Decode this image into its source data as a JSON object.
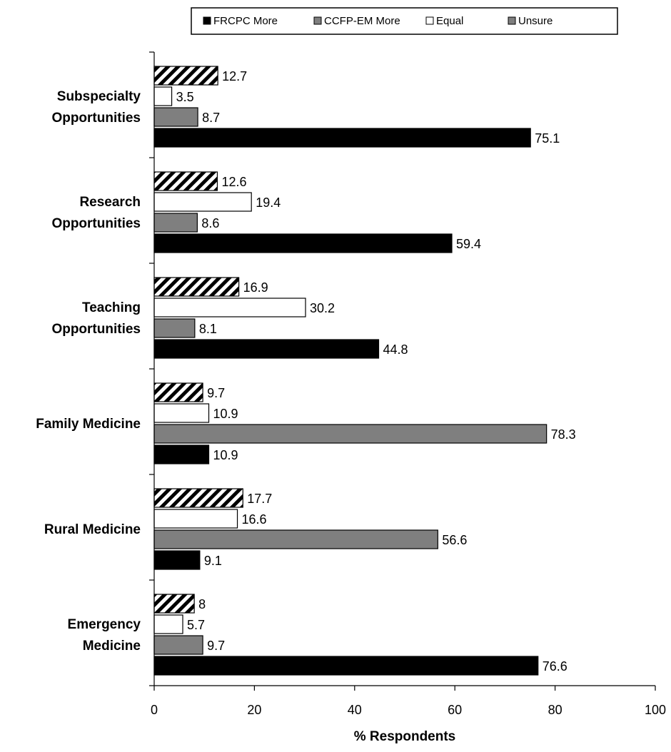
{
  "chart_data": {
    "type": "bar",
    "orientation": "horizontal",
    "categories": [
      [
        "Subspecialty",
        "Opportunities"
      ],
      [
        "Research",
        "Opportunities"
      ],
      [
        "Teaching",
        "Opportunities"
      ],
      [
        "Family Medicine"
      ],
      [
        "Rural Medicine"
      ],
      [
        "Emergency",
        "Medicine"
      ]
    ],
    "series": [
      {
        "name": "FRCPC More",
        "color": "#000000",
        "pattern": "solid",
        "values": [
          75.1,
          59.4,
          44.8,
          10.9,
          9.1,
          76.6
        ]
      },
      {
        "name": "CCFP-EM More",
        "color": "#7f7f7f",
        "pattern": "solid",
        "values": [
          8.7,
          8.6,
          8.1,
          78.3,
          56.6,
          9.7
        ]
      },
      {
        "name": "Equal",
        "color": "#ffffff",
        "pattern": "solid",
        "values": [
          3.5,
          19.4,
          30.2,
          10.9,
          16.6,
          5.7
        ]
      },
      {
        "name": "Unsure",
        "color": "#000000",
        "pattern": "diagonal-hatch",
        "values": [
          12.7,
          12.6,
          16.9,
          9.7,
          17.7,
          8
        ]
      }
    ],
    "value_labels": [
      [
        "75.1",
        "8.7",
        "3.5",
        "12.7"
      ],
      [
        "59.4",
        "8.6",
        "19.4",
        "12.6"
      ],
      [
        "44.8",
        "8.1",
        "30.2",
        "16.9"
      ],
      [
        "10.9",
        "78.3",
        "10.9",
        "9.7"
      ],
      [
        "9.1",
        "56.6",
        "16.6",
        "17.7"
      ],
      [
        "76.6",
        "9.7",
        "5.7",
        "8"
      ]
    ],
    "legend_labels": [
      "FRCPC More",
      "CCFP-EM More",
      "Equal",
      "Unsure"
    ],
    "legend_swatch_colors": [
      "#000000",
      "#7f7f7f",
      "#ffffff",
      "#7f7f7f"
    ],
    "xlim": [
      0,
      100
    ],
    "xticks": [
      0,
      20,
      40,
      60,
      80,
      100
    ],
    "xtick_labels": [
      "0",
      "20",
      "40",
      "60",
      "80",
      "100"
    ],
    "xlabel": "% Respondents",
    "ylabel": "",
    "title": "",
    "grid": false,
    "legend_position": "top"
  }
}
